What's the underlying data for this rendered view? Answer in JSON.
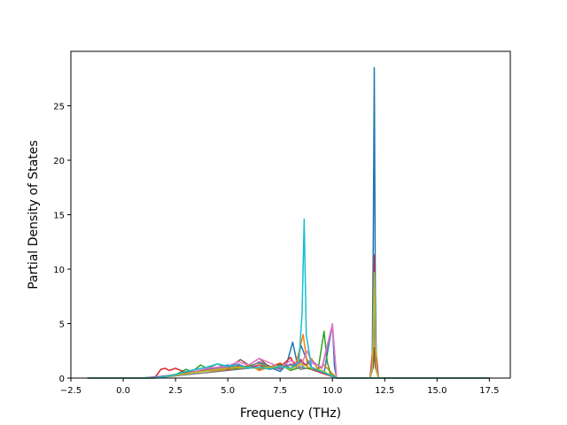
{
  "chart_data": {
    "type": "line",
    "title": "",
    "xlabel": "Frequency (THz)",
    "ylabel": "Partial Density of States",
    "xlim": [
      -2.5,
      18.5
    ],
    "ylim": [
      0,
      30
    ],
    "grid": false,
    "legend": "none",
    "x_ticks": [
      {
        "value": -2.5,
        "label": "−2.5"
      },
      {
        "value": 0.0,
        "label": "0.0"
      },
      {
        "value": 2.5,
        "label": "2.5"
      },
      {
        "value": 5.0,
        "label": "5.0"
      },
      {
        "value": 7.5,
        "label": "7.5"
      },
      {
        "value": 10.0,
        "label": "10.0"
      },
      {
        "value": 12.5,
        "label": "12.5"
      },
      {
        "value": 15.0,
        "label": "15.0"
      },
      {
        "value": 17.5,
        "label": "17.5"
      }
    ],
    "y_ticks": [
      {
        "value": 0,
        "label": "0"
      },
      {
        "value": 5,
        "label": "5"
      },
      {
        "value": 10,
        "label": "10"
      },
      {
        "value": 15,
        "label": "15"
      },
      {
        "value": 20,
        "label": "20"
      },
      {
        "value": 25,
        "label": "25"
      }
    ],
    "series": [
      {
        "color": "#1f77b4",
        "x": [
          -1.7,
          0.8,
          2.3,
          3.0,
          3.5,
          4.0,
          4.5,
          5.0,
          5.5,
          6.0,
          6.5,
          7.0,
          7.5,
          7.8,
          8.1,
          8.3,
          8.5,
          8.7,
          9.0,
          9.3,
          9.6,
          9.8,
          10.0,
          10.1,
          10.2,
          11.8,
          11.9,
          11.95,
          12.0,
          12.05,
          12.1,
          12.2,
          17.5
        ],
        "y": [
          0,
          0,
          0.2,
          0.4,
          0.6,
          0.8,
          1.0,
          1.2,
          0.9,
          1.1,
          0.8,
          1.0,
          0.6,
          1.2,
          3.3,
          1.5,
          3.0,
          2.0,
          1.0,
          0.6,
          0.4,
          2.8,
          4.9,
          1.0,
          0,
          0,
          1.0,
          12.0,
          28.5,
          8.0,
          1.0,
          0,
          0
        ]
      },
      {
        "color": "#ff7f0e",
        "x": [
          -1.7,
          1.0,
          2.5,
          3.5,
          4.5,
          5.5,
          6.0,
          6.5,
          7.0,
          7.5,
          8.0,
          8.3,
          8.6,
          8.8,
          9.0,
          9.3,
          9.6,
          10.2,
          11.8,
          11.95,
          12.0,
          12.05,
          12.2,
          17.5
        ],
        "y": [
          0,
          0,
          0.2,
          0.6,
          0.7,
          0.9,
          1.2,
          0.7,
          1.0,
          1.4,
          0.8,
          1.6,
          4.0,
          1.2,
          1.8,
          0.8,
          1.2,
          0,
          0,
          3.0,
          9.5,
          3.0,
          0,
          0
        ]
      },
      {
        "color": "#2ca02c",
        "x": [
          -1.7,
          1.5,
          2.5,
          3.0,
          3.3,
          3.7,
          4.0,
          4.5,
          5.0,
          5.5,
          6.0,
          6.5,
          7.0,
          7.5,
          8.0,
          8.5,
          9.0,
          9.3,
          9.6,
          9.75,
          9.9,
          10.2,
          17.5
        ],
        "y": [
          0,
          0,
          0.3,
          0.8,
          0.6,
          1.2,
          0.9,
          1.3,
          1.0,
          0.8,
          1.1,
          1.4,
          0.9,
          1.2,
          0.7,
          1.0,
          0.8,
          0.6,
          4.3,
          1.5,
          0.4,
          0,
          0
        ]
      },
      {
        "color": "#d62728",
        "x": [
          -1.7,
          1.5,
          1.8,
          2.0,
          2.2,
          2.5,
          3.0,
          3.5,
          4.0,
          4.5,
          5.0,
          5.5,
          6.0,
          6.5,
          7.0,
          7.5,
          8.0,
          8.2,
          8.5,
          8.7,
          9.0,
          9.3,
          10.2,
          11.8,
          11.95,
          12.0,
          12.05,
          12.2,
          17.5
        ],
        "y": [
          0,
          0,
          0.8,
          0.9,
          0.7,
          0.9,
          0.5,
          0.6,
          0.7,
          1.0,
          0.8,
          1.1,
          0.9,
          1.2,
          0.8,
          1.0,
          1.9,
          1.2,
          1.7,
          1.2,
          0.8,
          0.6,
          0,
          0,
          3.0,
          11.3,
          3.0,
          0,
          0
        ]
      },
      {
        "color": "#9467bd",
        "x": [
          -1.7,
          1.0,
          3.0,
          4.0,
          5.0,
          5.5,
          6.0,
          6.5,
          7.0,
          7.5,
          8.0,
          8.5,
          9.0,
          9.5,
          10.0,
          10.2,
          11.8,
          11.95,
          12.0,
          12.05,
          12.2,
          17.5
        ],
        "y": [
          0,
          0,
          0.4,
          0.8,
          1.0,
          1.3,
          0.9,
          1.5,
          1.1,
          0.8,
          1.3,
          1.0,
          1.6,
          0.9,
          4.7,
          0,
          0,
          2.0,
          8.0,
          2.0,
          0,
          0
        ]
      },
      {
        "color": "#8c564b",
        "x": [
          -1.7,
          1.5,
          3.0,
          4.0,
          5.0,
          5.6,
          6.0,
          6.5,
          7.0,
          7.5,
          8.0,
          8.5,
          9.0,
          9.5,
          10.2,
          11.8,
          11.95,
          12.0,
          12.05,
          12.2,
          17.5
        ],
        "y": [
          0,
          0,
          0.5,
          0.7,
          0.9,
          1.7,
          1.2,
          1.8,
          1.0,
          1.3,
          0.9,
          1.5,
          0.8,
          0.6,
          0,
          0,
          1.0,
          2.8,
          1.0,
          0,
          0
        ]
      },
      {
        "color": "#e377c2",
        "x": [
          -1.7,
          1.5,
          3.0,
          4.0,
          5.0,
          5.5,
          6.0,
          6.5,
          7.0,
          7.5,
          8.0,
          8.5,
          8.8,
          9.0,
          9.5,
          10.0,
          10.2,
          17.5
        ],
        "y": [
          0,
          0,
          0.4,
          0.9,
          1.1,
          1.5,
          1.2,
          1.8,
          1.4,
          1.0,
          1.6,
          1.2,
          2.5,
          1.4,
          1.0,
          5.0,
          0,
          0
        ]
      },
      {
        "color": "#7f7f7f",
        "x": [
          -1.7,
          1.5,
          3.0,
          4.5,
          5.5,
          6.5,
          7.5,
          8.0,
          8.5,
          9.0,
          9.5,
          10.2,
          17.5
        ],
        "y": [
          0,
          0,
          0.3,
          0.6,
          0.8,
          1.0,
          0.9,
          1.2,
          0.8,
          1.0,
          0.6,
          0,
          0
        ]
      },
      {
        "color": "#bcbd22",
        "x": [
          -1.7,
          1.5,
          3.0,
          4.5,
          5.5,
          6.5,
          7.5,
          8.0,
          8.5,
          9.0,
          9.5,
          10.2,
          11.8,
          11.9,
          11.95,
          12.0,
          12.05,
          12.1,
          12.2,
          17.5
        ],
        "y": [
          0,
          0,
          0.4,
          0.8,
          1.0,
          0.9,
          1.1,
          0.8,
          1.3,
          0.9,
          0.7,
          0,
          0,
          0.8,
          4.0,
          9.7,
          4.0,
          0.8,
          0,
          0
        ]
      },
      {
        "color": "#17becf",
        "x": [
          -1.7,
          1.5,
          2.5,
          3.0,
          3.5,
          4.0,
          4.5,
          5.0,
          5.5,
          6.0,
          6.5,
          7.0,
          7.5,
          8.0,
          8.4,
          8.55,
          8.65,
          8.75,
          9.0,
          9.3,
          9.6,
          10.2,
          17.5
        ],
        "y": [
          0,
          0,
          0.3,
          0.6,
          0.8,
          1.0,
          1.3,
          1.1,
          1.2,
          0.9,
          1.0,
          0.8,
          1.1,
          0.9,
          1.5,
          6.0,
          14.6,
          4.0,
          1.0,
          0.7,
          0.5,
          0,
          0
        ]
      }
    ]
  }
}
